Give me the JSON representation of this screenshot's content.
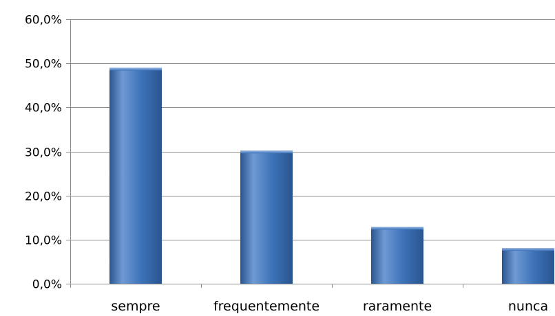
{
  "chart_data": {
    "type": "bar",
    "title": "",
    "xlabel": "",
    "ylabel": "",
    "categories": [
      "sempre",
      "frequentemente",
      "raramente",
      "nunca"
    ],
    "values": [
      49.0,
      30.2,
      12.9,
      8.1
    ],
    "ylim": [
      0,
      60
    ],
    "yticks": [
      0,
      10,
      20,
      30,
      40,
      50,
      60
    ],
    "ytick_labels": [
      "0,0%",
      "10,0%",
      "20,0%",
      "30,0%",
      "40,0%",
      "50,0%",
      "60,0%"
    ],
    "grid": true,
    "legend": "none",
    "colors": {
      "bar": "#3d73b9",
      "bar_light": "#6f9ad4",
      "bar_dark": "#2a5590",
      "grid": "#8c8c8c",
      "axis": "#8c8c8c"
    }
  }
}
